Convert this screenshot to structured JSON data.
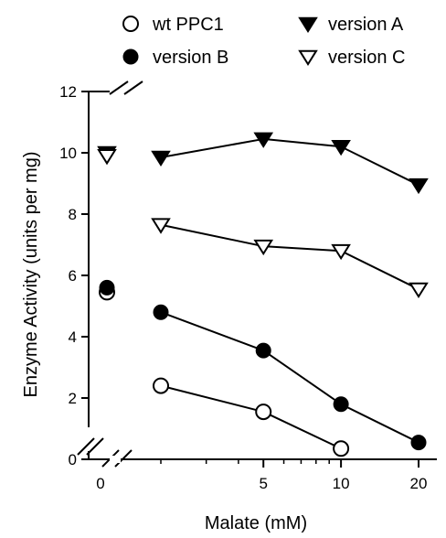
{
  "chart_data": {
    "type": "scatter",
    "xlabel": "Malate (mM)",
    "ylabel": "Enzyme Activity (units per mg)",
    "x_scale": "log",
    "x_axis_break": true,
    "y_axis_break": true,
    "ylim": [
      0,
      12
    ],
    "yticks": [
      "0",
      "2",
      "4",
      "6",
      "8",
      "10",
      "12"
    ],
    "xticks": [
      "0",
      "5",
      "10",
      "20"
    ],
    "xlim": [
      1.5,
      25
    ],
    "zero_x_values": {
      "wt PPC1": 5.45,
      "version B": 5.6,
      "version A": 10.0,
      "version C": 9.9
    },
    "legend_placement": "top",
    "series": [
      {
        "name": "wt PPC1",
        "marker": "circle-open",
        "x": [
          2,
          5,
          10,
          20
        ],
        "y": [
          2.4,
          1.55,
          0.35,
          null
        ]
      },
      {
        "name": "version A",
        "marker": "triangle-filled",
        "x": [
          2,
          5,
          10,
          20
        ],
        "y": [
          9.85,
          10.45,
          10.2,
          8.95
        ]
      },
      {
        "name": "version B",
        "marker": "circle-filled",
        "x": [
          2,
          5,
          10,
          20
        ],
        "y": [
          4.8,
          3.55,
          1.8,
          0.55
        ]
      },
      {
        "name": "version C",
        "marker": "triangle-open",
        "x": [
          2,
          5,
          10,
          20
        ],
        "y": [
          7.65,
          6.95,
          6.8,
          5.55
        ]
      }
    ]
  }
}
